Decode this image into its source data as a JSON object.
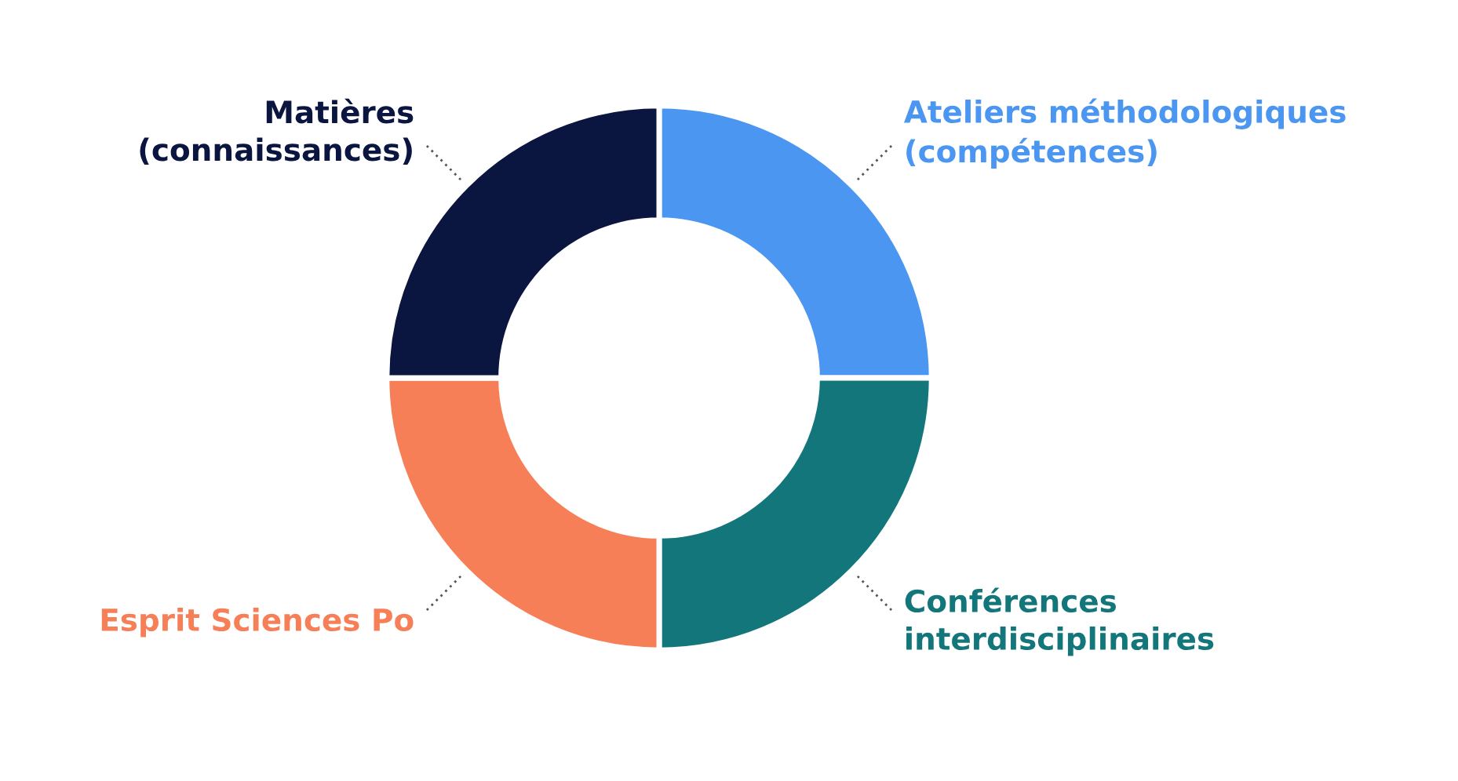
{
  "chart_data": {
    "type": "donut",
    "categories": [
      "Ateliers méthodologiques\n(compétences)",
      "Conférences\ninterdisciplinaires",
      "Esprit Sciences Po",
      "Matières\n(connaissances)"
    ],
    "values": [
      25,
      25,
      25,
      25
    ],
    "colors": [
      "#4a96f0",
      "#12767a",
      "#f77f58",
      "#0a1540"
    ]
  }
}
